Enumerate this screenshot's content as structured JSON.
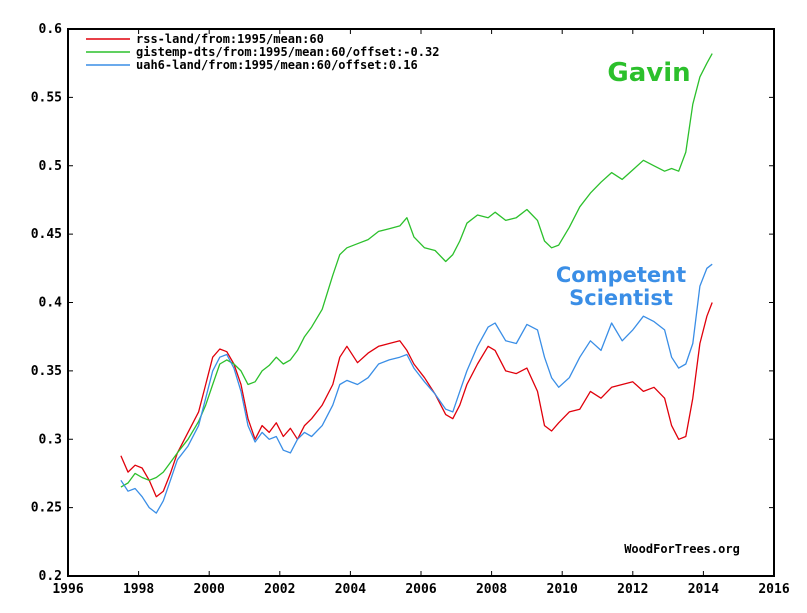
{
  "chart_data": {
    "type": "line",
    "xlim": [
      1996,
      2016
    ],
    "ylim": [
      0.2,
      0.6
    ],
    "x_ticks": [
      1996,
      1998,
      2000,
      2002,
      2004,
      2006,
      2008,
      2010,
      2012,
      2014,
      2016
    ],
    "x_tick_labels": [
      "1996",
      "1998",
      "2000",
      "2002",
      "2004",
      "2006",
      "2008",
      "2010",
      "2012",
      "2014",
      "2016"
    ],
    "y_ticks": [
      0.2,
      0.25,
      0.3,
      0.35,
      0.4,
      0.45,
      0.5,
      0.55,
      0.6
    ],
    "y_tick_labels": [
      "0.2",
      "0.25",
      "0.3",
      "0.35",
      "0.4",
      "0.45",
      "0.5",
      "0.55",
      "0.6"
    ],
    "grid": false,
    "legend_position": "top-left",
    "series": [
      {
        "name": "rss-land/from:1995/mean:60",
        "color": "#e0000b",
        "x": [
          1997.5,
          1997.7,
          1997.9,
          1998.1,
          1998.3,
          1998.5,
          1998.7,
          1998.9,
          1999.1,
          1999.4,
          1999.7,
          1999.9,
          2000.1,
          2000.3,
          2000.5,
          2000.7,
          2000.9,
          2001.1,
          2001.3,
          2001.5,
          2001.7,
          2001.9,
          2002.1,
          2002.3,
          2002.5,
          2002.7,
          2002.9,
          2003.2,
          2003.5,
          2003.7,
          2003.9,
          2004.2,
          2004.5,
          2004.8,
          2005.1,
          2005.4,
          2005.6,
          2005.8,
          2006.1,
          2006.4,
          2006.7,
          2006.9,
          2007.1,
          2007.3,
          2007.6,
          2007.9,
          2008.1,
          2008.4,
          2008.7,
          2009.0,
          2009.3,
          2009.5,
          2009.7,
          2009.9,
          2010.2,
          2010.5,
          2010.8,
          2011.1,
          2011.4,
          2011.7,
          2012.0,
          2012.3,
          2012.6,
          2012.9,
          2013.1,
          2013.3,
          2013.5,
          2013.7,
          2013.9,
          2014.1,
          2014.25
        ],
        "y": [
          0.288,
          0.276,
          0.281,
          0.279,
          0.27,
          0.258,
          0.262,
          0.275,
          0.29,
          0.305,
          0.32,
          0.34,
          0.36,
          0.366,
          0.364,
          0.355,
          0.34,
          0.315,
          0.3,
          0.31,
          0.305,
          0.312,
          0.302,
          0.308,
          0.3,
          0.31,
          0.315,
          0.325,
          0.34,
          0.36,
          0.368,
          0.356,
          0.363,
          0.368,
          0.37,
          0.372,
          0.365,
          0.355,
          0.345,
          0.333,
          0.318,
          0.315,
          0.325,
          0.34,
          0.355,
          0.368,
          0.365,
          0.35,
          0.348,
          0.352,
          0.335,
          0.31,
          0.306,
          0.312,
          0.32,
          0.322,
          0.335,
          0.33,
          0.338,
          0.34,
          0.342,
          0.335,
          0.338,
          0.33,
          0.31,
          0.3,
          0.302,
          0.33,
          0.37,
          0.39,
          0.4
        ]
      },
      {
        "name": "gistemp-dts/from:1995/mean:60/offset:-0.32",
        "color": "#2cc02c",
        "x": [
          1997.5,
          1997.7,
          1997.9,
          1998.1,
          1998.3,
          1998.5,
          1998.7,
          1998.9,
          1999.1,
          1999.4,
          1999.7,
          1999.9,
          2000.1,
          2000.3,
          2000.5,
          2000.7,
          2000.9,
          2001.1,
          2001.3,
          2001.5,
          2001.7,
          2001.9,
          2002.1,
          2002.3,
          2002.5,
          2002.7,
          2002.9,
          2003.2,
          2003.5,
          2003.7,
          2003.9,
          2004.2,
          2004.5,
          2004.8,
          2005.1,
          2005.4,
          2005.6,
          2005.8,
          2006.1,
          2006.4,
          2006.7,
          2006.9,
          2007.1,
          2007.3,
          2007.6,
          2007.9,
          2008.1,
          2008.4,
          2008.7,
          2009.0,
          2009.3,
          2009.5,
          2009.7,
          2009.9,
          2010.2,
          2010.5,
          2010.8,
          2011.1,
          2011.4,
          2011.7,
          2012.0,
          2012.3,
          2012.6,
          2012.9,
          2013.1,
          2013.3,
          2013.5,
          2013.7,
          2013.9,
          2014.1,
          2014.25
        ],
        "y": [
          0.265,
          0.268,
          0.275,
          0.272,
          0.27,
          0.272,
          0.276,
          0.283,
          0.29,
          0.3,
          0.313,
          0.325,
          0.34,
          0.355,
          0.358,
          0.355,
          0.35,
          0.34,
          0.342,
          0.35,
          0.354,
          0.36,
          0.355,
          0.358,
          0.365,
          0.375,
          0.382,
          0.395,
          0.42,
          0.435,
          0.44,
          0.443,
          0.446,
          0.452,
          0.454,
          0.456,
          0.462,
          0.448,
          0.44,
          0.438,
          0.43,
          0.435,
          0.445,
          0.458,
          0.464,
          0.462,
          0.466,
          0.46,
          0.462,
          0.468,
          0.46,
          0.445,
          0.44,
          0.442,
          0.455,
          0.47,
          0.48,
          0.488,
          0.495,
          0.49,
          0.497,
          0.504,
          0.5,
          0.496,
          0.498,
          0.496,
          0.51,
          0.545,
          0.565,
          0.575,
          0.582
        ]
      },
      {
        "name": "uah6-land/from:1995/mean:60/offset:0.16",
        "color": "#3a8ee6",
        "x": [
          1997.5,
          1997.7,
          1997.9,
          1998.1,
          1998.3,
          1998.5,
          1998.7,
          1998.9,
          1999.1,
          1999.4,
          1999.7,
          1999.9,
          2000.1,
          2000.3,
          2000.5,
          2000.7,
          2000.9,
          2001.1,
          2001.3,
          2001.5,
          2001.7,
          2001.9,
          2002.1,
          2002.3,
          2002.5,
          2002.7,
          2002.9,
          2003.2,
          2003.5,
          2003.7,
          2003.9,
          2004.2,
          2004.5,
          2004.8,
          2005.1,
          2005.4,
          2005.6,
          2005.8,
          2006.1,
          2006.4,
          2006.7,
          2006.9,
          2007.1,
          2007.3,
          2007.6,
          2007.9,
          2008.1,
          2008.4,
          2008.7,
          2009.0,
          2009.3,
          2009.5,
          2009.7,
          2009.9,
          2010.2,
          2010.5,
          2010.8,
          2011.1,
          2011.4,
          2011.7,
          2012.0,
          2012.3,
          2012.6,
          2012.9,
          2013.1,
          2013.3,
          2013.5,
          2013.7,
          2013.9,
          2014.1,
          2014.25
        ],
        "y": [
          0.27,
          0.262,
          0.264,
          0.258,
          0.25,
          0.246,
          0.255,
          0.27,
          0.285,
          0.295,
          0.31,
          0.33,
          0.35,
          0.36,
          0.362,
          0.352,
          0.335,
          0.31,
          0.298,
          0.305,
          0.3,
          0.302,
          0.292,
          0.29,
          0.3,
          0.305,
          0.302,
          0.31,
          0.325,
          0.34,
          0.343,
          0.34,
          0.345,
          0.355,
          0.358,
          0.36,
          0.362,
          0.352,
          0.342,
          0.333,
          0.322,
          0.32,
          0.335,
          0.35,
          0.368,
          0.382,
          0.385,
          0.372,
          0.37,
          0.384,
          0.38,
          0.36,
          0.345,
          0.338,
          0.345,
          0.36,
          0.372,
          0.365,
          0.385,
          0.372,
          0.38,
          0.39,
          0.386,
          0.38,
          0.36,
          0.352,
          0.355,
          0.37,
          0.412,
          0.425,
          0.428
        ]
      }
    ],
    "annotations": [
      {
        "text": "Gavin",
        "color": "#2cc02c"
      },
      {
        "text": "Competent",
        "color": "#3a8ee6"
      },
      {
        "text": "Scientist",
        "color": "#3a8ee6"
      }
    ],
    "credit": "WoodForTrees.org"
  }
}
